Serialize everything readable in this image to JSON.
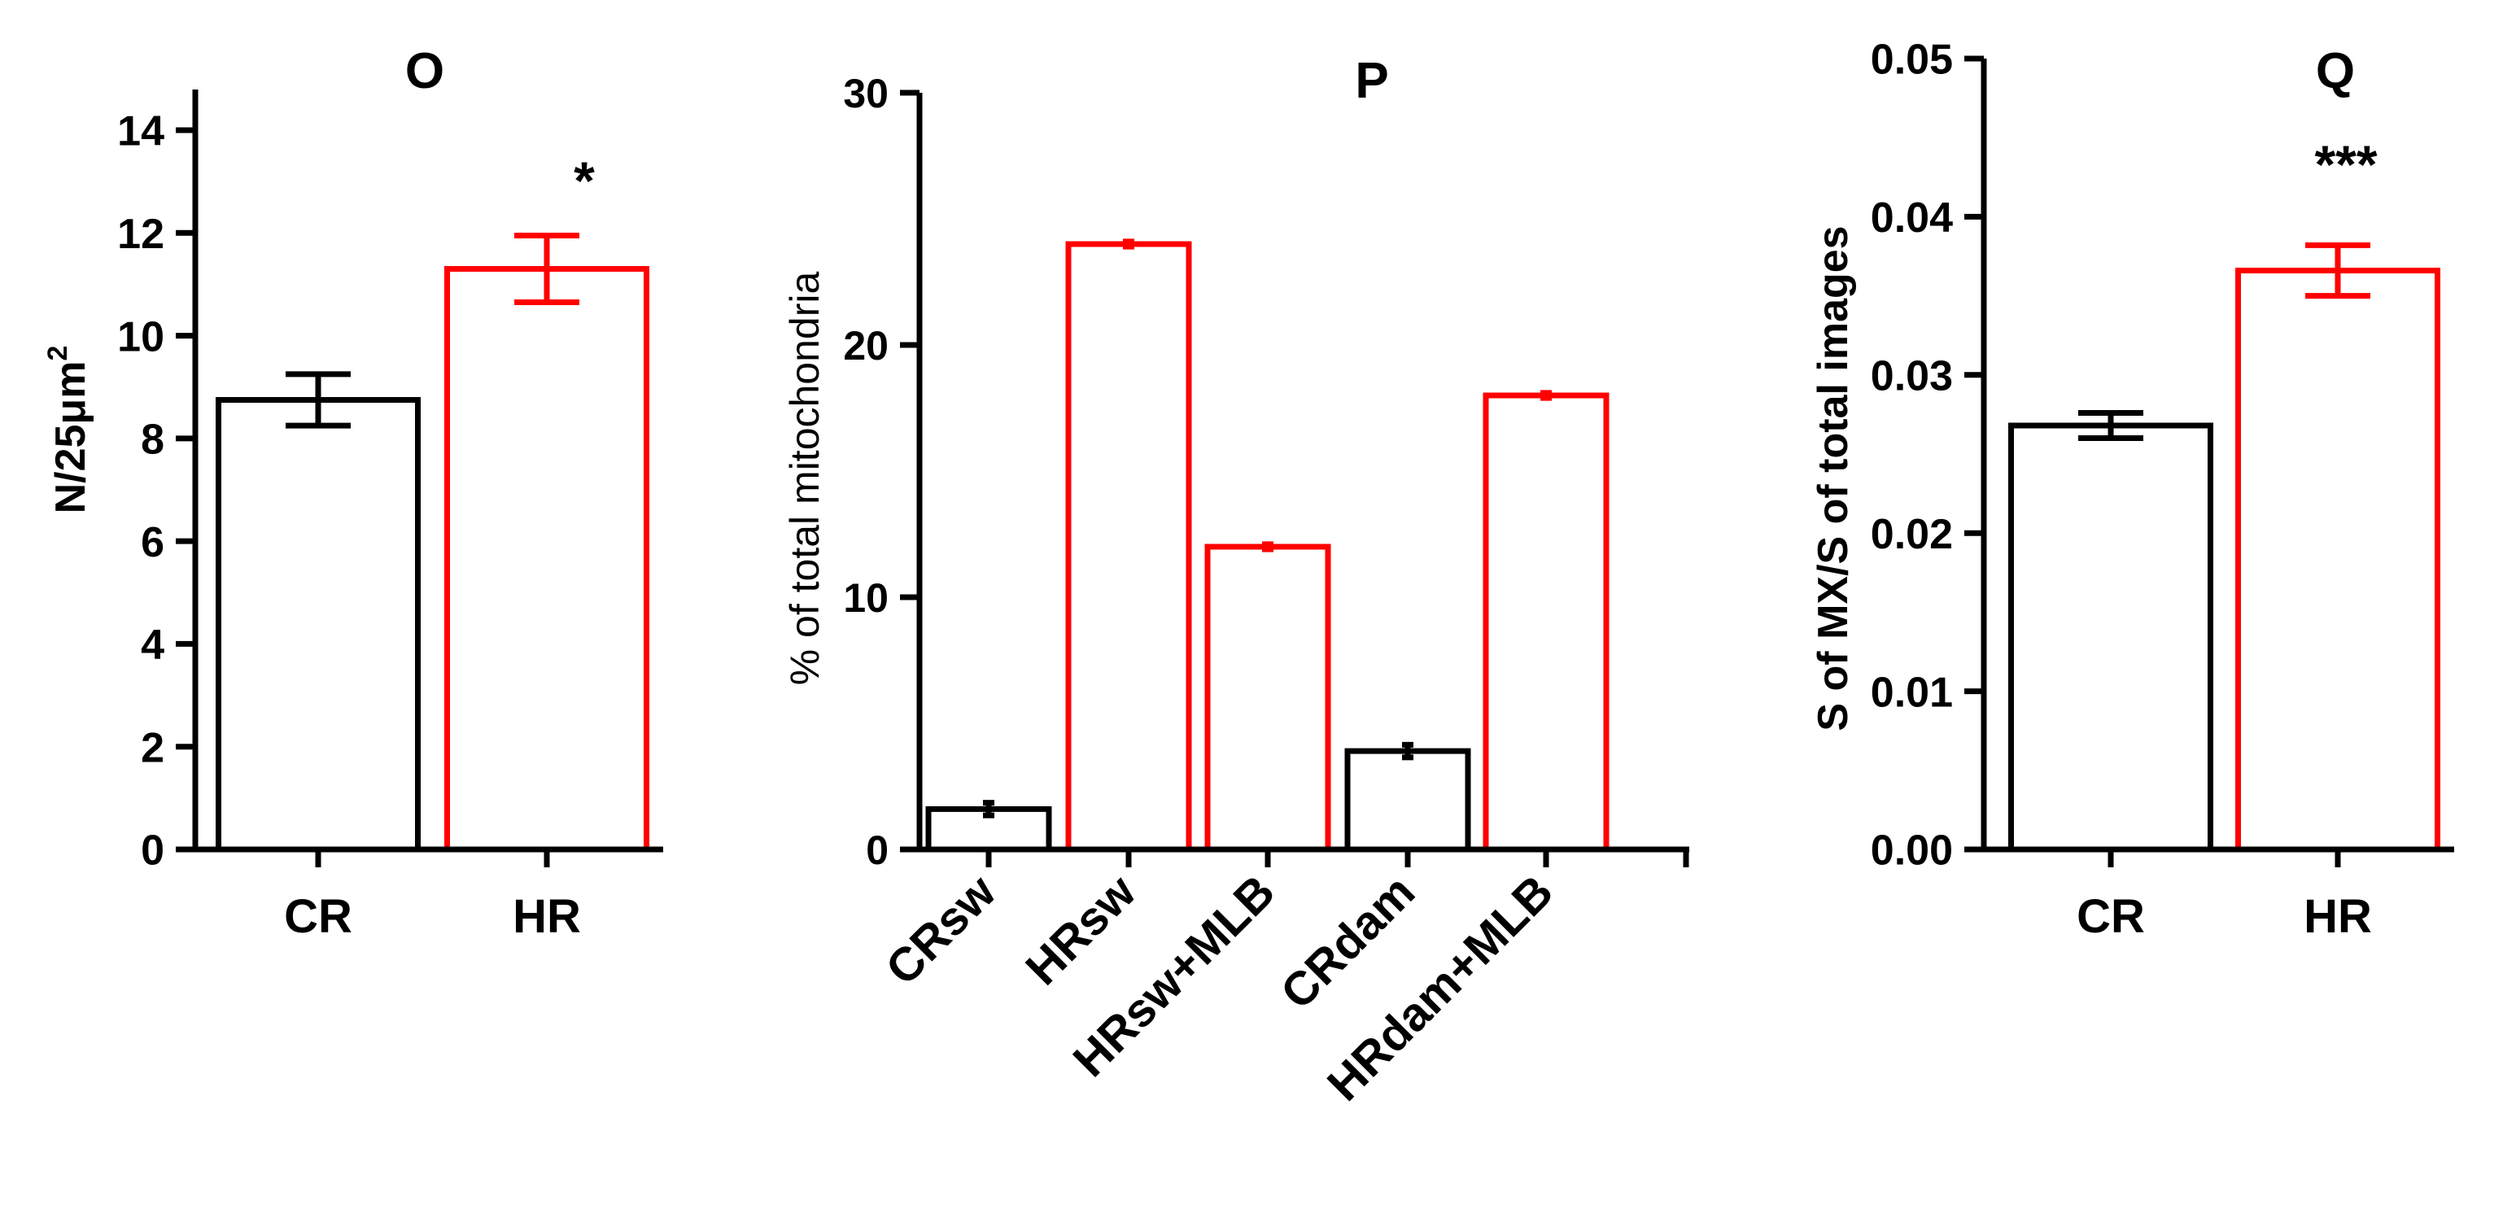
{
  "colors": {
    "control": "#000000",
    "treatment": "#ff0000",
    "axis": "#000000"
  },
  "chart_data": [
    {
      "type": "bar",
      "title": "O",
      "ylabel": "N/25μm²",
      "ylabel_main": "N/25μm",
      "ylabel_sup": "2",
      "xlabel": "",
      "ylim": [
        0,
        14
      ],
      "ytick_values": [
        0,
        2,
        4,
        6,
        8,
        10,
        12,
        14
      ],
      "ytick_labels": [
        "0",
        "2",
        "4",
        "6",
        "8",
        "10",
        "12",
        "14"
      ],
      "categories": [
        "CR",
        "HR"
      ],
      "values": [
        8.75,
        11.3
      ],
      "errors": [
        0.5,
        0.65
      ],
      "bar_colors": [
        "control",
        "treatment"
      ],
      "annotations": [
        "",
        "*"
      ]
    },
    {
      "type": "bar",
      "title": "P",
      "ylabel": "% of total mitochondria",
      "xlabel": "",
      "ylim": [
        0,
        30
      ],
      "ytick_values": [
        0,
        10,
        20,
        30
      ],
      "ytick_labels": [
        "0",
        "10",
        "20",
        "30"
      ],
      "categories": [
        "CRsw",
        "HRsw",
        "HRsw+MLB",
        "CRdam",
        "HRdam+MLB"
      ],
      "values": [
        1.6,
        24.0,
        12.0,
        3.9,
        18.0
      ],
      "errors": [
        0.25,
        0.1,
        0.1,
        0.25,
        0.1
      ],
      "bar_colors": [
        "control",
        "treatment",
        "treatment",
        "control",
        "treatment"
      ],
      "annotations": [
        "",
        "",
        "",
        "",
        ""
      ]
    },
    {
      "type": "bar",
      "title": "Q",
      "ylabel": "S of MX/S of total images",
      "xlabel": "",
      "ylim": [
        0,
        0.05
      ],
      "ytick_values": [
        0,
        0.01,
        0.02,
        0.03,
        0.04,
        0.05
      ],
      "ytick_labels": [
        "0.00",
        "0.01",
        "0.02",
        "0.03",
        "0.04",
        "0.05"
      ],
      "categories": [
        "CR",
        "HR"
      ],
      "values": [
        0.0268,
        0.0366
      ],
      "errors": [
        0.0008,
        0.0016
      ],
      "bar_colors": [
        "control",
        "treatment"
      ],
      "annotations": [
        "",
        "***"
      ]
    }
  ]
}
